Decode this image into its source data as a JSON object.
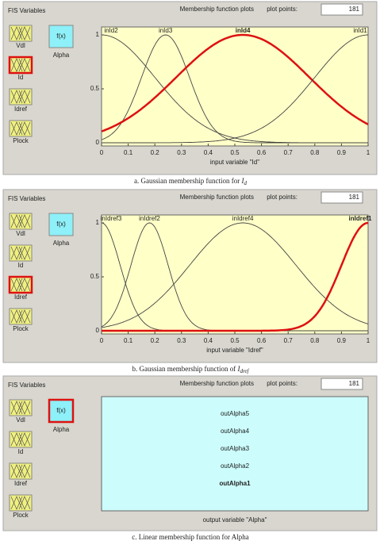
{
  "panels": [
    {
      "fis_title": "FIS Variables",
      "mf_title": "Membership function plots",
      "plot_points_label": "plot points:",
      "plot_points": "181",
      "inputs": [
        "Vdl",
        "Id",
        "Idref",
        "Plock"
      ],
      "output_icon": "f(x)",
      "output": "Alpha",
      "selected_input": 1,
      "chart": {
        "type": "gaussian",
        "xlabel": "input variable \"Id\"",
        "xlim": [
          0,
          1
        ],
        "ylim": [
          0,
          1
        ],
        "xticks": [
          0,
          0.1,
          0.2,
          0.3,
          0.4,
          0.5,
          0.6,
          0.7,
          0.8,
          0.9,
          1
        ],
        "yticks": [
          0,
          0.5,
          1
        ],
        "mfs": [
          {
            "name": "inId2",
            "center": 0,
            "sigma": 0.2,
            "color": "#444444"
          },
          {
            "name": "inId3",
            "center": 0.24,
            "sigma": 0.09,
            "color": "#444444"
          },
          {
            "name": "inId4",
            "center": 0.53,
            "sigma": 0.25,
            "color": "#dd1111"
          },
          {
            "name": "inId1",
            "center": 1,
            "sigma": 0.2,
            "color": "#444444"
          }
        ]
      },
      "caption": {
        "text": "a. Gaussian membership function for ",
        "symbol": "I",
        "subscript": "d"
      }
    },
    {
      "fis_title": "FIS Variables",
      "mf_title": "Membership function plots",
      "plot_points_label": "plot points:",
      "plot_points": "181",
      "inputs": [
        "Vdl",
        "Id",
        "Idref",
        "Plock"
      ],
      "output_icon": "f(x)",
      "output": "Alpha",
      "selected_input": 2,
      "chart": {
        "type": "gaussian",
        "xlabel": "input variable \"Idref\"",
        "xlim": [
          0,
          1
        ],
        "ylim": [
          0,
          1
        ],
        "xticks": [
          0,
          0.1,
          0.2,
          0.3,
          0.4,
          0.5,
          0.6,
          0.7,
          0.8,
          0.9,
          1
        ],
        "yticks": [
          0,
          0.5,
          1
        ],
        "mfs": [
          {
            "name": "inIdref3",
            "center": 0,
            "sigma": 0.07,
            "color": "#444444"
          },
          {
            "name": "inIdref2",
            "center": 0.18,
            "sigma": 0.07,
            "color": "#444444"
          },
          {
            "name": "inIdref4",
            "center": 0.53,
            "sigma": 0.2,
            "color": "#444444"
          },
          {
            "name": "inIdref1",
            "center": 1,
            "sigma": 0.1,
            "color": "#dd1111"
          }
        ]
      },
      "caption": {
        "text": "b. Gaussian membership function of ",
        "symbol": "I",
        "subscript": "dref"
      }
    },
    {
      "fis_title": "FIS Variables",
      "mf_title": "Membership function plots",
      "plot_points_label": "plot points:",
      "plot_points": "181",
      "inputs": [
        "Vdl",
        "Id",
        "Idref",
        "Plock"
      ],
      "output_icon": "f(x)",
      "output": "Alpha",
      "selected_input": null,
      "chart": {
        "type": "list",
        "xlabel": "output variable \"Alpha\"",
        "items": [
          {
            "name": "outAlpha5",
            "color": "#222222"
          },
          {
            "name": "outAlpha4",
            "color": "#222222"
          },
          {
            "name": "outAlpha3",
            "color": "#222222"
          },
          {
            "name": "outAlpha2",
            "color": "#222222"
          },
          {
            "name": "outAlpha1",
            "color": "#dd1111"
          }
        ]
      },
      "caption": {
        "text": "c. Linear membership function for Alpha"
      }
    }
  ]
}
